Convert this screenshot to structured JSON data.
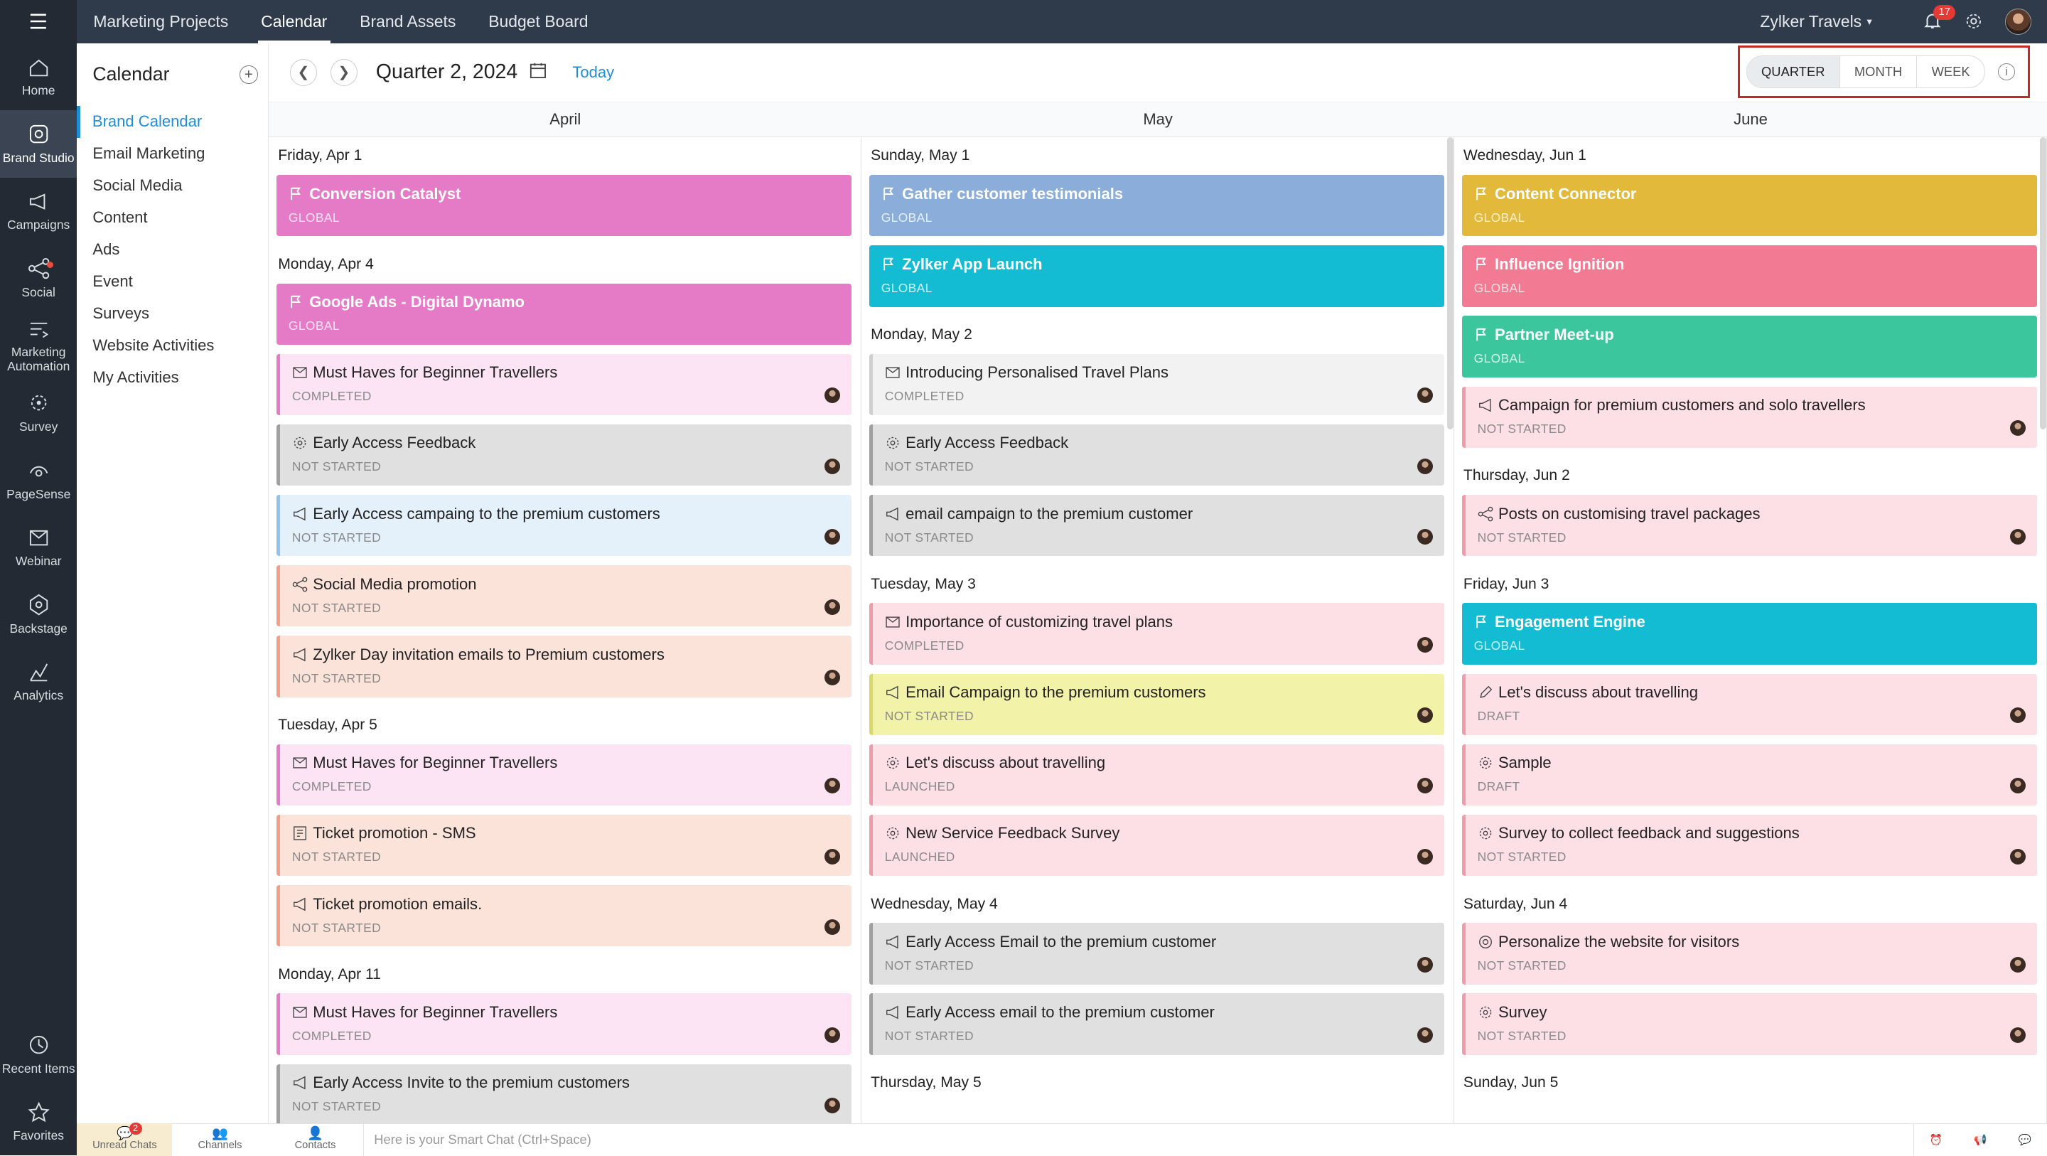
{
  "nav": {
    "items": [
      {
        "label": "Home",
        "icon": "home-icon"
      },
      {
        "label": "Brand Studio",
        "icon": "brand-studio-icon",
        "active": true
      },
      {
        "label": "Campaigns",
        "icon": "megaphone-icon"
      },
      {
        "label": "Social",
        "icon": "social-icon"
      },
      {
        "label": "Marketing Automation",
        "icon": "automation-icon"
      },
      {
        "label": "Survey",
        "icon": "survey-icon"
      },
      {
        "label": "PageSense",
        "icon": "pagesense-icon"
      },
      {
        "label": "Webinar",
        "icon": "webinar-icon"
      },
      {
        "label": "Backstage",
        "icon": "backstage-icon"
      },
      {
        "label": "Analytics",
        "icon": "analytics-icon"
      }
    ],
    "bottom": [
      {
        "label": "Recent Items"
      },
      {
        "label": "Favorites"
      }
    ]
  },
  "topbar": {
    "tabs": [
      "Marketing Projects",
      "Calendar",
      "Brand Assets",
      "Budget Board"
    ],
    "active": "Calendar",
    "org": "Zylker Travels",
    "notifications": "17"
  },
  "sidebar": {
    "title": "Calendar",
    "items": [
      "Brand Calendar",
      "Email Marketing",
      "Social Media",
      "Content",
      "Ads",
      "Event",
      "Surveys",
      "Website Activities",
      "My Activities"
    ]
  },
  "calendar": {
    "period": "Quarter 2, 2024",
    "today": "Today",
    "views": [
      "QUARTER",
      "MONTH",
      "WEEK"
    ],
    "active_view": "QUARTER",
    "months": [
      "April",
      "May",
      "June"
    ]
  },
  "columns": [
    {
      "days": [
        {
          "label": "Friday, Apr 1",
          "events": [
            {
              "title": "Conversion Catalyst",
              "status": "GLOBAL",
              "type": "milestone",
              "color": "#e57ac6"
            }
          ]
        },
        {
          "label": "Monday, Apr 4",
          "events": [
            {
              "title": "Google Ads - Digital Dynamo",
              "status": "GLOBAL",
              "type": "milestone",
              "color": "#e57ac6"
            },
            {
              "title": "Must Haves for Beginner Travellers",
              "status": "COMPLETED",
              "type": "activity",
              "icon": "webinar",
              "bg": "#fce4f4",
              "border": "#e57ac6"
            },
            {
              "title": "Early Access Feedback",
              "status": "NOT STARTED",
              "type": "activity",
              "icon": "survey",
              "bg": "#e0e0e0",
              "border": "#a0a0a0"
            },
            {
              "title": "Early Access campaing to the premium customers",
              "status": "NOT STARTED",
              "type": "activity",
              "icon": "campaign",
              "bg": "#e4f1fb",
              "border": "#8fc3ea"
            },
            {
              "title": "Social Media promotion",
              "status": "NOT STARTED",
              "type": "activity",
              "icon": "social",
              "bg": "#fbe3da",
              "border": "#f0a08a"
            },
            {
              "title": "Zylker Day invitation emails to Premium customers",
              "status": "NOT STARTED",
              "type": "activity",
              "icon": "campaign",
              "bg": "#fbe3da",
              "border": "#f0a08a"
            }
          ]
        },
        {
          "label": "Tuesday, Apr 5",
          "events": [
            {
              "title": "Must Haves for Beginner Travellers",
              "status": "COMPLETED",
              "type": "activity",
              "icon": "webinar",
              "bg": "#fce4f4",
              "border": "#e57ac6"
            },
            {
              "title": "Ticket promotion - SMS",
              "status": "NOT STARTED",
              "type": "activity",
              "icon": "sms",
              "bg": "#fbe3da",
              "border": "#f0a08a"
            },
            {
              "title": "Ticket promotion emails.",
              "status": "NOT STARTED",
              "type": "activity",
              "icon": "campaign",
              "bg": "#fbe3da",
              "border": "#f0a08a"
            }
          ]
        },
        {
          "label": "Monday, Apr 11",
          "events": [
            {
              "title": "Must Haves for Beginner Travellers",
              "status": "COMPLETED",
              "type": "activity",
              "icon": "webinar",
              "bg": "#fce4f4",
              "border": "#e57ac6"
            },
            {
              "title": "Early Access Invite to the premium customers",
              "status": "NOT STARTED",
              "type": "activity",
              "icon": "campaign",
              "bg": "#e0e0e0",
              "border": "#a0a0a0"
            }
          ]
        }
      ]
    },
    {
      "days": [
        {
          "label": "Sunday, May 1",
          "events": [
            {
              "title": "Gather customer testimonials",
              "status": "GLOBAL",
              "type": "milestone",
              "color": "#8badd9"
            },
            {
              "title": "Zylker App Launch",
              "status": "GLOBAL",
              "type": "milestone",
              "color": "#13bcd2"
            }
          ]
        },
        {
          "label": "Monday, May 2",
          "events": [
            {
              "title": "Introducing Personalised Travel Plans",
              "status": "COMPLETED",
              "type": "activity",
              "icon": "webinar",
              "bg": "#f2f2f2",
              "border": "#cfcfcf"
            },
            {
              "title": "Early Access Feedback",
              "status": "NOT STARTED",
              "type": "activity",
              "icon": "survey",
              "bg": "#e0e0e0",
              "border": "#a0a0a0"
            },
            {
              "title": "email campaign to the premium customer",
              "status": "NOT STARTED",
              "type": "activity",
              "icon": "campaign",
              "bg": "#e0e0e0",
              "border": "#a0a0a0"
            }
          ]
        },
        {
          "label": "Tuesday, May 3",
          "events": [
            {
              "title": "Importance of customizing travel plans",
              "status": "COMPLETED",
              "type": "activity",
              "icon": "webinar",
              "bg": "#fde0e6",
              "border": "#f09aaa"
            },
            {
              "title": "Email Campaign to the premium customers",
              "status": "NOT STARTED",
              "type": "activity",
              "icon": "campaign",
              "bg": "#f2f2a8",
              "border": "#d9d96a"
            },
            {
              "title": "Let&apos;s discuss about travelling",
              "status": "LAUNCHED",
              "type": "activity",
              "icon": "survey",
              "bg": "#fde0e6",
              "border": "#f09aaa"
            },
            {
              "title": "New Service Feedback Survey",
              "status": "LAUNCHED",
              "type": "activity",
              "icon": "survey",
              "bg": "#fde0e6",
              "border": "#f09aaa"
            }
          ]
        },
        {
          "label": "Wednesday, May 4",
          "events": [
            {
              "title": "Early Access Email to the premium customer",
              "status": "NOT STARTED",
              "type": "activity",
              "icon": "campaign",
              "bg": "#e0e0e0",
              "border": "#a0a0a0"
            },
            {
              "title": "Early Access email to the premium customer",
              "status": "NOT STARTED",
              "type": "activity",
              "icon": "campaign",
              "bg": "#e0e0e0",
              "border": "#a0a0a0"
            }
          ]
        },
        {
          "label": "Thursday, May 5",
          "events": []
        }
      ]
    },
    {
      "days": [
        {
          "label": "Wednesday, Jun 1",
          "events": [
            {
              "title": "Content Connector",
              "status": "GLOBAL",
              "type": "milestone",
              "color": "#e2b93b"
            },
            {
              "title": "Influence Ignition",
              "status": "GLOBAL",
              "type": "milestone",
              "color": "#f27a92"
            },
            {
              "title": "Partner Meet-up",
              "status": "GLOBAL",
              "type": "milestone",
              "color": "#3cc69e"
            },
            {
              "title": "Campaign for premium customers and solo travellers",
              "status": "NOT STARTED",
              "type": "activity",
              "icon": "campaign",
              "bg": "#fde0e6",
              "border": "#f09aaa"
            }
          ]
        },
        {
          "label": "Thursday, Jun 2",
          "events": [
            {
              "title": "Posts on customising travel packages",
              "status": "NOT STARTED",
              "type": "activity",
              "icon": "social",
              "bg": "#fde0e6",
              "border": "#f09aaa"
            }
          ]
        },
        {
          "label": "Friday, Jun 3",
          "events": [
            {
              "title": "Engagement Engine",
              "status": "GLOBAL",
              "type": "milestone",
              "color": "#13bcd2"
            },
            {
              "title": "Let's discuss about travelling",
              "status": "DRAFT",
              "type": "activity",
              "icon": "pen",
              "bg": "#fde0e6",
              "border": "#f09aaa"
            },
            {
              "title": "Sample",
              "status": "DRAFT",
              "type": "activity",
              "icon": "survey",
              "bg": "#fde0e6",
              "border": "#f09aaa"
            },
            {
              "title": "Survey to collect feedback and suggestions",
              "status": "NOT STARTED",
              "type": "activity",
              "icon": "survey",
              "bg": "#fde0e6",
              "border": "#f09aaa"
            }
          ]
        },
        {
          "label": "Saturday, Jun 4",
          "events": [
            {
              "title": "Personalize the website for visitors",
              "status": "NOT STARTED",
              "type": "activity",
              "icon": "target",
              "bg": "#fde0e6",
              "border": "#f09aaa"
            },
            {
              "title": "Survey",
              "status": "NOT STARTED",
              "type": "activity",
              "icon": "survey",
              "bg": "#fde0e6",
              "border": "#f09aaa"
            }
          ]
        },
        {
          "label": "Sunday, Jun 5",
          "events": []
        }
      ]
    }
  ],
  "bottombar": {
    "items": [
      {
        "label": "Unread Chats",
        "badge": "2"
      },
      {
        "label": "Channels"
      },
      {
        "label": "Contacts"
      }
    ],
    "smartchat": "Here is your Smart Chat (Ctrl+Space)"
  }
}
